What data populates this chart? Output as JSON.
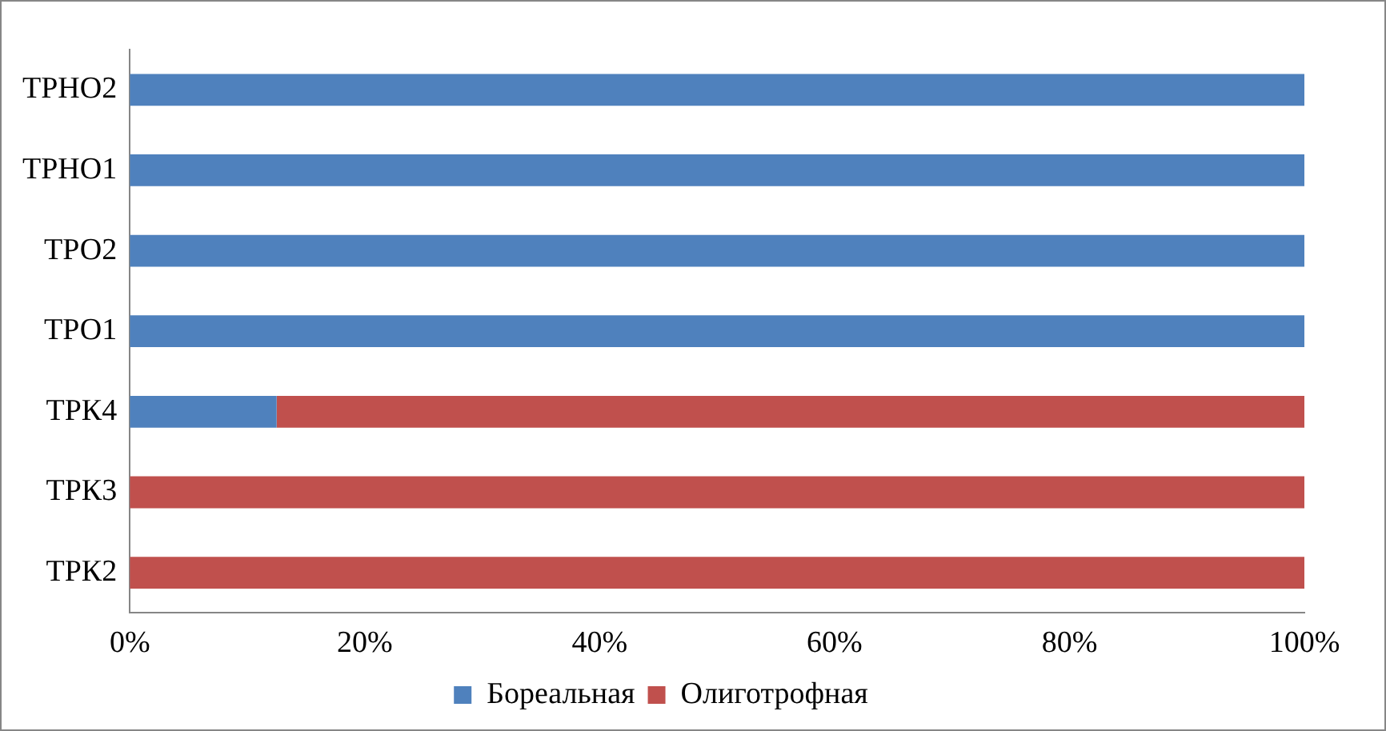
{
  "chart_data": {
    "type": "bar",
    "orientation": "horizontal",
    "stacked": true,
    "categories": [
      "ТРНО2",
      "ТРНО1",
      "ТРО2",
      "ТРО1",
      "ТРК4",
      "ТРК3",
      "ТРК2"
    ],
    "series": [
      {
        "name": "Бореальная",
        "color": "#4f81bd",
        "values": [
          100,
          100,
          100,
          100,
          12.5,
          0,
          0
        ]
      },
      {
        "name": "Олиготрофная",
        "color": "#c0504d",
        "values": [
          0,
          0,
          0,
          0,
          87.5,
          100,
          100
        ]
      }
    ],
    "xlim": [
      0,
      100
    ],
    "xticks": [
      {
        "value": 0,
        "label": "0%"
      },
      {
        "value": 20,
        "label": "20%"
      },
      {
        "value": 40,
        "label": "40%"
      },
      {
        "value": 60,
        "label": "60%"
      },
      {
        "value": 80,
        "label": "80%"
      },
      {
        "value": 100,
        "label": "100%"
      }
    ],
    "grid": false,
    "legend": "bottom"
  }
}
